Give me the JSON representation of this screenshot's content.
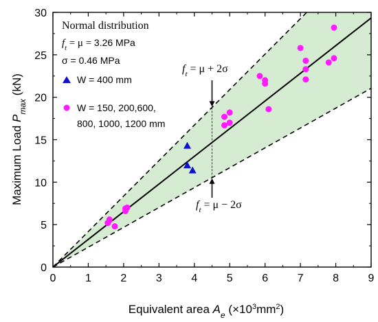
{
  "chart_data": {
    "type": "scatter",
    "xlabel_prefix": "Equivalent area ",
    "xlabel_var": "A",
    "xlabel_sub": "e",
    "xlabel_unit_pre": " (×10",
    "xlabel_unit_sup": "3",
    "xlabel_unit_post": "mm",
    "xlabel_unit_sup2": "2",
    "xlabel_unit_end": ")",
    "ylabel_prefix": "Maximum Load ",
    "ylabel_var": "P",
    "ylabel_sub": "max",
    "ylabel_unit": " (kN)",
    "xlim": [
      0,
      9
    ],
    "ylim": [
      0,
      30
    ],
    "xticks": [
      0,
      1,
      2,
      3,
      4,
      5,
      6,
      7,
      8,
      9
    ],
    "yticks": [
      0,
      5,
      10,
      15,
      20,
      25,
      30
    ],
    "lines": {
      "mean_slope": 3.26,
      "upper_slope": 4.18,
      "lower_slope": 2.34,
      "marker_x": 4.5
    },
    "fill_color": "#d6ecd2",
    "legend": {
      "title": "Normal distribution",
      "ft_symbol": "f",
      "ft_sub": "t",
      "ft_rest": " = μ =  ",
      "ft_value": "3.26 MPa",
      "sigma_label": "σ = 0.46 MPa",
      "tri_label": "W = 400 mm",
      "circle_label_1": "W = 150, 200,600,",
      "circle_label_2": "800, 1000, 1200 mm"
    },
    "annotations": {
      "upper_f": "f",
      "upper_sub": "t",
      "upper_rest": " = μ + 2σ",
      "lower_f": "f",
      "lower_sub": "t",
      "lower_rest": " = μ − 2σ"
    },
    "series": [
      {
        "name": "W = 400 mm",
        "marker": "triangle",
        "color": "#1010d0",
        "points": [
          [
            3.8,
            14.3
          ],
          [
            3.8,
            12.0
          ],
          [
            3.95,
            11.4
          ]
        ]
      },
      {
        "name": "W = 150, 200,600, 800, 1000, 1200 mm",
        "marker": "circle",
        "color": "#ff1aff",
        "points": [
          [
            1.55,
            5.2
          ],
          [
            1.6,
            5.5
          ],
          [
            1.6,
            5.6
          ],
          [
            1.75,
            4.8
          ],
          [
            2.05,
            6.6
          ],
          [
            2.05,
            6.9
          ],
          [
            2.1,
            7.0
          ],
          [
            4.85,
            17.7
          ],
          [
            4.85,
            16.7
          ],
          [
            5.0,
            18.2
          ],
          [
            5.0,
            17.0
          ],
          [
            5.85,
            22.5
          ],
          [
            6.0,
            22.0
          ],
          [
            6.0,
            21.6
          ],
          [
            6.1,
            18.6
          ],
          [
            7.0,
            25.8
          ],
          [
            7.15,
            24.3
          ],
          [
            7.15,
            23.3
          ],
          [
            7.15,
            22.1
          ],
          [
            7.8,
            24.1
          ],
          [
            7.95,
            28.2
          ],
          [
            7.95,
            24.6
          ]
        ]
      }
    ]
  }
}
